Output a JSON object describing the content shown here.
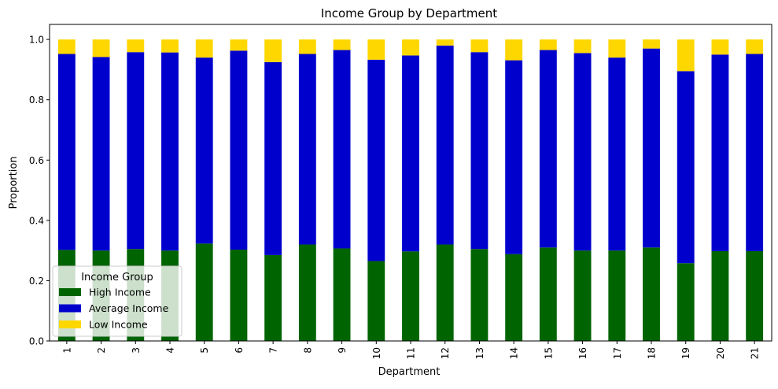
{
  "chart_data": {
    "type": "bar",
    "stacked": true,
    "title": "Income Group by Department",
    "xlabel": "Department",
    "ylabel": "Proportion",
    "ylim": [
      0,
      1.05
    ],
    "yticks": [
      0.0,
      0.2,
      0.4,
      0.6,
      0.8,
      1.0
    ],
    "ytick_labels": [
      "0.0",
      "0.2",
      "0.4",
      "0.6",
      "0.8",
      "1.0"
    ],
    "grid": false,
    "legend": {
      "title": "Income Group",
      "position": "lower-left"
    },
    "categories": [
      "1",
      "2",
      "3",
      "4",
      "5",
      "6",
      "7",
      "8",
      "9",
      "10",
      "11",
      "12",
      "13",
      "14",
      "15",
      "16",
      "17",
      "18",
      "19",
      "20",
      "21"
    ],
    "series": [
      {
        "name": "High Income",
        "color": "#006400",
        "values": [
          0.302,
          0.3,
          0.305,
          0.3,
          0.323,
          0.303,
          0.285,
          0.32,
          0.307,
          0.265,
          0.297,
          0.32,
          0.305,
          0.288,
          0.31,
          0.3,
          0.3,
          0.31,
          0.258,
          0.298,
          0.298
        ]
      },
      {
        "name": "Average Income",
        "color": "#0000CD",
        "values": [
          0.65,
          0.642,
          0.653,
          0.657,
          0.617,
          0.66,
          0.64,
          0.632,
          0.658,
          0.668,
          0.65,
          0.66,
          0.653,
          0.643,
          0.655,
          0.655,
          0.64,
          0.66,
          0.637,
          0.652,
          0.654
        ]
      },
      {
        "name": "Low Income",
        "color": "#FFD700",
        "values": [
          0.048,
          0.058,
          0.042,
          0.043,
          0.06,
          0.037,
          0.075,
          0.048,
          0.035,
          0.067,
          0.053,
          0.02,
          0.042,
          0.069,
          0.035,
          0.045,
          0.06,
          0.03,
          0.105,
          0.05,
          0.048
        ]
      }
    ]
  }
}
